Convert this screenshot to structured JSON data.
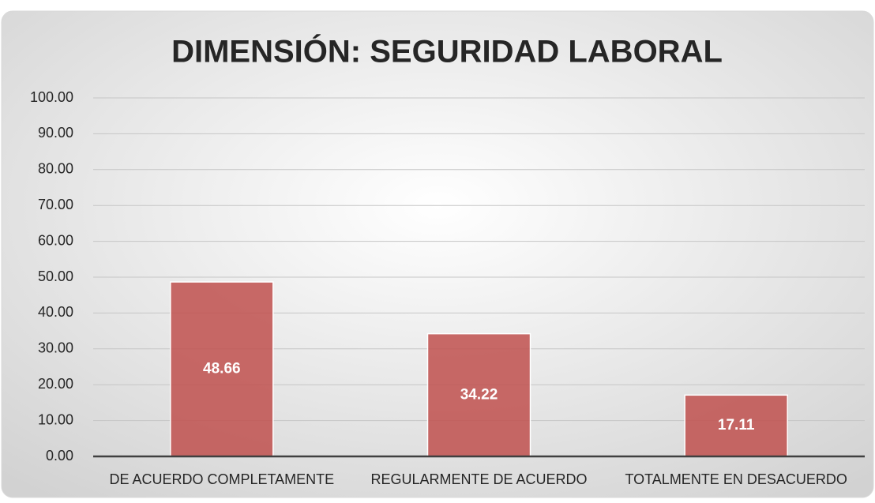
{
  "chart_data": {
    "type": "bar",
    "title": "DIMENSIÓN: SEGURIDAD LABORAL",
    "categories": [
      "DE ACUERDO COMPLETAMENTE",
      "REGULARMENTE DE ACUERDO",
      "TOTALMENTE EN DESACUERDO"
    ],
    "values": [
      48.66,
      34.22,
      17.11
    ],
    "color": "#c0504d",
    "ylim": [
      0,
      100
    ],
    "yticks": [
      {
        "value": 0,
        "label": "0.00"
      },
      {
        "value": 10,
        "label": "10.00"
      },
      {
        "value": 20,
        "label": "20.00"
      },
      {
        "value": 30,
        "label": "30.00"
      },
      {
        "value": 40,
        "label": "40.00"
      },
      {
        "value": 50,
        "label": "50.00"
      },
      {
        "value": 60,
        "label": "60.00"
      },
      {
        "value": 70,
        "label": "70.00"
      },
      {
        "value": 80,
        "label": "80.00"
      },
      {
        "value": 90,
        "label": "90.00"
      },
      {
        "value": 100,
        "label": "100.00"
      }
    ],
    "grid": true
  }
}
